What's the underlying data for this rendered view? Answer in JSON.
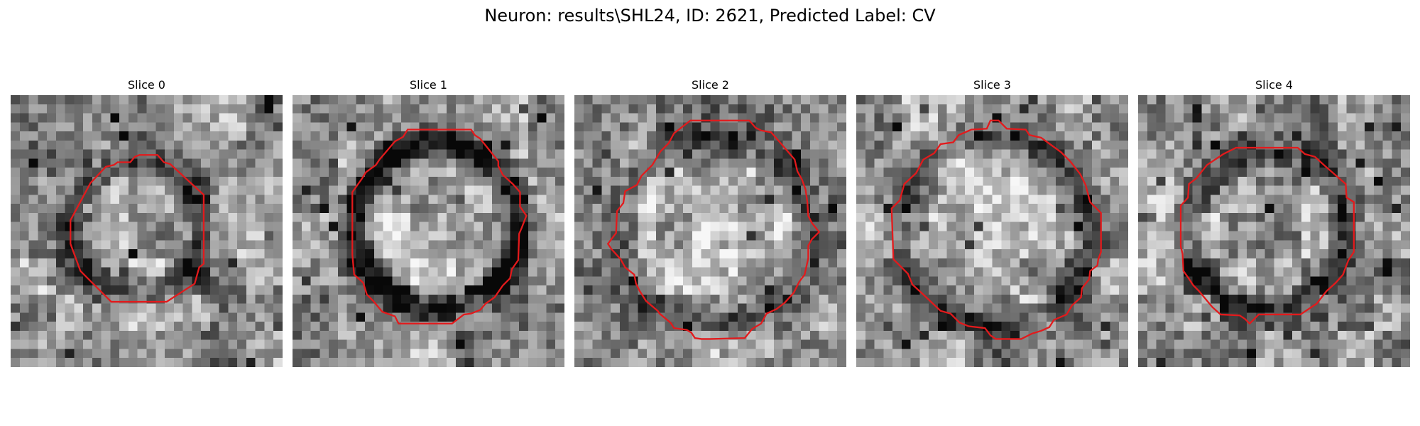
{
  "figure": {
    "title": "Neuron: results\\SHL24, ID: 2621, Predicted Label: CV",
    "contour_color": "#e31a1c",
    "colormap": "gray"
  },
  "panels": [
    {
      "title": "Slice 0"
    },
    {
      "title": "Slice 1"
    },
    {
      "title": "Slice 2"
    },
    {
      "title": "Slice 3"
    },
    {
      "title": "Slice 4"
    }
  ]
}
